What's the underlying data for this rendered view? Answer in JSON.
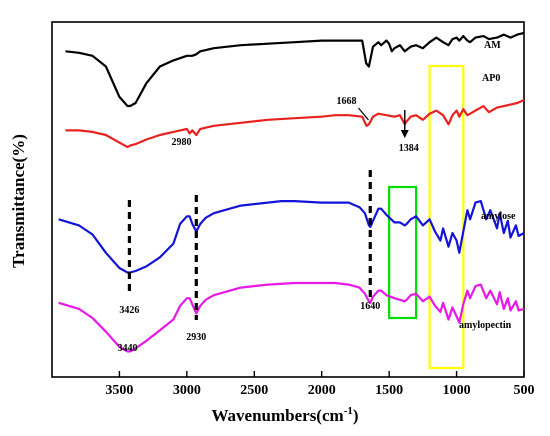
{
  "chart_data": {
    "type": "line",
    "xlabel": "Wavenumbers(cm",
    "xlabel_sup": "-1",
    "xlabel_close": ")",
    "ylabel": "Transmittance(%)",
    "x_reversed": true,
    "xlim": [
      4000,
      500
    ],
    "xticks": [
      3500,
      3000,
      2500,
      2000,
      1500,
      1000,
      500
    ],
    "grid": false,
    "series": [
      {
        "name": "AM",
        "color": "#000000",
        "level": 0.12,
        "points": [
          [
            3900,
            0.86
          ],
          [
            3800,
            0.85
          ],
          [
            3700,
            0.83
          ],
          [
            3600,
            0.76
          ],
          [
            3500,
            0.56
          ],
          [
            3440,
            0.5
          ],
          [
            3420,
            0.5
          ],
          [
            3380,
            0.52
          ],
          [
            3300,
            0.65
          ],
          [
            3200,
            0.76
          ],
          [
            3100,
            0.8
          ],
          [
            3000,
            0.83
          ],
          [
            2960,
            0.83
          ],
          [
            2930,
            0.84
          ],
          [
            2900,
            0.86
          ],
          [
            2800,
            0.88
          ],
          [
            2600,
            0.9
          ],
          [
            2400,
            0.91
          ],
          [
            2200,
            0.92
          ],
          [
            2000,
            0.93
          ],
          [
            1900,
            0.93
          ],
          [
            1800,
            0.93
          ],
          [
            1700,
            0.93
          ],
          [
            1670,
            0.78
          ],
          [
            1650,
            0.76
          ],
          [
            1620,
            0.89
          ],
          [
            1580,
            0.92
          ],
          [
            1560,
            0.9
          ],
          [
            1520,
            0.93
          ],
          [
            1500,
            0.91
          ],
          [
            1480,
            0.86
          ],
          [
            1460,
            0.88
          ],
          [
            1420,
            0.9
          ],
          [
            1384,
            0.86
          ],
          [
            1370,
            0.87
          ],
          [
            1340,
            0.89
          ],
          [
            1300,
            0.9
          ],
          [
            1250,
            0.88
          ],
          [
            1200,
            0.92
          ],
          [
            1150,
            0.95
          ],
          [
            1100,
            0.92
          ],
          [
            1060,
            0.9
          ],
          [
            1030,
            0.94
          ],
          [
            1000,
            0.95
          ],
          [
            980,
            0.93
          ],
          [
            950,
            0.96
          ],
          [
            920,
            0.93
          ],
          [
            900,
            0.92
          ],
          [
            860,
            0.95
          ],
          [
            800,
            0.96
          ],
          [
            760,
            0.94
          ],
          [
            700,
            0.95
          ],
          [
            650,
            0.97
          ],
          [
            600,
            0.95
          ],
          [
            550,
            0.97
          ],
          [
            500,
            0.98
          ]
        ]
      },
      {
        "name": "AP0",
        "color": "#e8221f",
        "level": 0.18,
        "points": [
          [
            3900,
            0.8
          ],
          [
            3800,
            0.8
          ],
          [
            3700,
            0.79
          ],
          [
            3600,
            0.77
          ],
          [
            3500,
            0.72
          ],
          [
            3440,
            0.69
          ],
          [
            3420,
            0.7
          ],
          [
            3380,
            0.71
          ],
          [
            3300,
            0.74
          ],
          [
            3200,
            0.77
          ],
          [
            3100,
            0.79
          ],
          [
            3000,
            0.81
          ],
          [
            2980,
            0.78
          ],
          [
            2960,
            0.8
          ],
          [
            2930,
            0.77
          ],
          [
            2900,
            0.81
          ],
          [
            2800,
            0.83
          ],
          [
            2600,
            0.85
          ],
          [
            2400,
            0.87
          ],
          [
            2200,
            0.88
          ],
          [
            2000,
            0.89
          ],
          [
            1900,
            0.9
          ],
          [
            1800,
            0.9
          ],
          [
            1700,
            0.89
          ],
          [
            1668,
            0.83
          ],
          [
            1650,
            0.84
          ],
          [
            1620,
            0.89
          ],
          [
            1580,
            0.91
          ],
          [
            1520,
            0.9
          ],
          [
            1460,
            0.89
          ],
          [
            1420,
            0.9
          ],
          [
            1384,
            0.84
          ],
          [
            1370,
            0.86
          ],
          [
            1340,
            0.89
          ],
          [
            1300,
            0.9
          ],
          [
            1250,
            0.87
          ],
          [
            1200,
            0.91
          ],
          [
            1150,
            0.93
          ],
          [
            1100,
            0.9
          ],
          [
            1060,
            0.84
          ],
          [
            1030,
            0.9
          ],
          [
            1000,
            0.93
          ],
          [
            980,
            0.89
          ],
          [
            950,
            0.94
          ],
          [
            920,
            0.9
          ],
          [
            900,
            0.91
          ],
          [
            860,
            0.93
          ],
          [
            800,
            0.96
          ],
          [
            760,
            0.92
          ],
          [
            700,
            0.95
          ],
          [
            650,
            0.96
          ],
          [
            600,
            0.97
          ],
          [
            550,
            0.98
          ],
          [
            500,
            1.0
          ]
        ]
      },
      {
        "name": "amylose",
        "color": "#1414d8",
        "level": 0.52,
        "points": [
          [
            3950,
            0.84
          ],
          [
            3800,
            0.8
          ],
          [
            3700,
            0.74
          ],
          [
            3600,
            0.62
          ],
          [
            3500,
            0.52
          ],
          [
            3440,
            0.49
          ],
          [
            3420,
            0.49
          ],
          [
            3380,
            0.5
          ],
          [
            3300,
            0.53
          ],
          [
            3200,
            0.59
          ],
          [
            3100,
            0.68
          ],
          [
            3050,
            0.81
          ],
          [
            3000,
            0.86
          ],
          [
            2980,
            0.86
          ],
          [
            2960,
            0.81
          ],
          [
            2930,
            0.76
          ],
          [
            2900,
            0.81
          ],
          [
            2860,
            0.85
          ],
          [
            2800,
            0.88
          ],
          [
            2600,
            0.93
          ],
          [
            2400,
            0.95
          ],
          [
            2300,
            0.96
          ],
          [
            2200,
            0.96
          ],
          [
            2000,
            0.95
          ],
          [
            1900,
            0.95
          ],
          [
            1800,
            0.95
          ],
          [
            1720,
            0.92
          ],
          [
            1680,
            0.88
          ],
          [
            1650,
            0.8
          ],
          [
            1640,
            0.79
          ],
          [
            1620,
            0.83
          ],
          [
            1580,
            0.91
          ],
          [
            1560,
            0.91
          ],
          [
            1520,
            0.87
          ],
          [
            1460,
            0.82
          ],
          [
            1420,
            0.82
          ],
          [
            1384,
            0.8
          ],
          [
            1370,
            0.81
          ],
          [
            1340,
            0.84
          ],
          [
            1300,
            0.86
          ],
          [
            1250,
            0.8
          ],
          [
            1200,
            0.84
          ],
          [
            1160,
            0.76
          ],
          [
            1120,
            0.7
          ],
          [
            1100,
            0.78
          ],
          [
            1060,
            0.66
          ],
          [
            1030,
            0.75
          ],
          [
            1000,
            0.7
          ],
          [
            980,
            0.62
          ],
          [
            950,
            0.76
          ],
          [
            920,
            0.9
          ],
          [
            900,
            0.84
          ],
          [
            860,
            0.95
          ],
          [
            820,
            0.96
          ],
          [
            780,
            0.84
          ],
          [
            750,
            0.9
          ],
          [
            700,
            0.78
          ],
          [
            680,
            0.88
          ],
          [
            650,
            0.75
          ],
          [
            620,
            0.83
          ],
          [
            600,
            0.72
          ],
          [
            560,
            0.8
          ],
          [
            540,
            0.73
          ],
          [
            500,
            0.75
          ]
        ]
      },
      {
        "name": "amylopectin",
        "color": "#e619e6",
        "level": 0.82,
        "points": [
          [
            3950,
            0.85
          ],
          [
            3800,
            0.81
          ],
          [
            3700,
            0.75
          ],
          [
            3600,
            0.66
          ],
          [
            3500,
            0.56
          ],
          [
            3440,
            0.53
          ],
          [
            3420,
            0.53
          ],
          [
            3380,
            0.55
          ],
          [
            3300,
            0.6
          ],
          [
            3200,
            0.67
          ],
          [
            3100,
            0.74
          ],
          [
            3050,
            0.83
          ],
          [
            3000,
            0.88
          ],
          [
            2980,
            0.88
          ],
          [
            2960,
            0.84
          ],
          [
            2930,
            0.78
          ],
          [
            2900,
            0.83
          ],
          [
            2860,
            0.87
          ],
          [
            2800,
            0.9
          ],
          [
            2600,
            0.95
          ],
          [
            2400,
            0.97
          ],
          [
            2200,
            0.98
          ],
          [
            2000,
            0.98
          ],
          [
            1900,
            0.98
          ],
          [
            1800,
            0.97
          ],
          [
            1720,
            0.95
          ],
          [
            1680,
            0.91
          ],
          [
            1650,
            0.86
          ],
          [
            1640,
            0.85
          ],
          [
            1620,
            0.89
          ],
          [
            1580,
            0.93
          ],
          [
            1560,
            0.93
          ],
          [
            1520,
            0.9
          ],
          [
            1460,
            0.88
          ],
          [
            1420,
            0.87
          ],
          [
            1384,
            0.86
          ],
          [
            1370,
            0.87
          ],
          [
            1340,
            0.9
          ],
          [
            1300,
            0.91
          ],
          [
            1250,
            0.86
          ],
          [
            1200,
            0.89
          ],
          [
            1160,
            0.83
          ],
          [
            1120,
            0.79
          ],
          [
            1100,
            0.85
          ],
          [
            1060,
            0.74
          ],
          [
            1030,
            0.82
          ],
          [
            1000,
            0.76
          ],
          [
            980,
            0.72
          ],
          [
            950,
            0.84
          ],
          [
            920,
            0.93
          ],
          [
            900,
            0.88
          ],
          [
            860,
            0.96
          ],
          [
            820,
            0.97
          ],
          [
            780,
            0.88
          ],
          [
            750,
            0.93
          ],
          [
            700,
            0.84
          ],
          [
            680,
            0.92
          ],
          [
            650,
            0.81
          ],
          [
            620,
            0.88
          ],
          [
            600,
            0.8
          ],
          [
            560,
            0.86
          ],
          [
            540,
            0.8
          ],
          [
            500,
            0.81
          ]
        ]
      }
    ],
    "annotations": [
      {
        "text": "1668",
        "x": 1668
      },
      {
        "text": "1384",
        "x": 1384
      },
      {
        "text": "2980",
        "x": 2980
      },
      {
        "text": "3426",
        "x": 3426
      },
      {
        "text": "2930",
        "x": 2930
      },
      {
        "text": "1640",
        "x": 1640
      },
      {
        "text": "3440",
        "x": 3440
      }
    ],
    "dashed_markers_x": [
      3426,
      2930,
      1640
    ],
    "highlight_boxes": [
      {
        "color": "#ffff00",
        "x_from": 1200,
        "x_to": 950
      },
      {
        "color": "#00dd00",
        "x_from": 1500,
        "x_to": 1300
      }
    ]
  }
}
